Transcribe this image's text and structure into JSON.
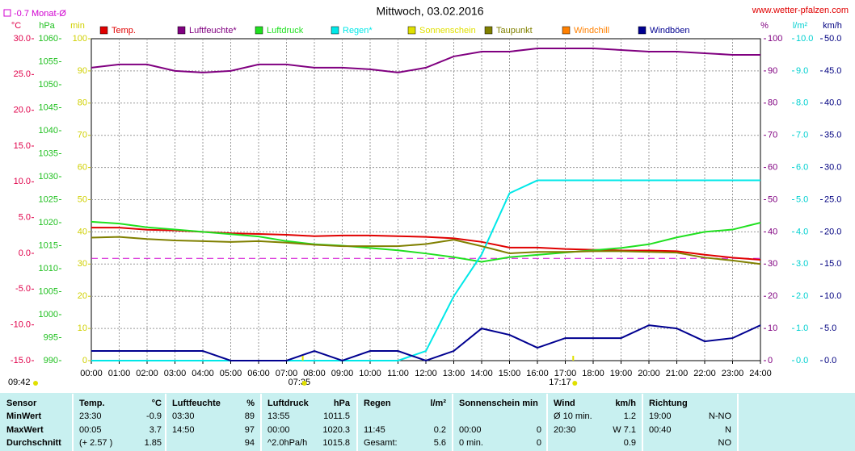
{
  "chart_data": {
    "type": "line",
    "title": "Mittwoch, 03.02.2016",
    "source": "www.wetter-pfalzen.com",
    "updated": "09:42",
    "sunrise": "07:35",
    "sunset": "17:17",
    "monthly_avg": {
      "value": -0.7,
      "label": "-0.7 Monat-Ø",
      "color": "#d000d0",
      "axis": "temp"
    },
    "x": [
      0,
      1,
      2,
      3,
      4,
      5,
      6,
      7,
      8,
      9,
      10,
      11,
      12,
      13,
      14,
      15,
      16,
      17,
      18,
      19,
      20,
      21,
      22,
      23,
      24
    ],
    "xlim": [
      0,
      24
    ],
    "xticks": [
      {
        "value": 0,
        "label": "00:00"
      },
      {
        "value": 1,
        "label": "01:00"
      },
      {
        "value": 2,
        "label": "02:00"
      },
      {
        "value": 3,
        "label": "03:00"
      },
      {
        "value": 4,
        "label": "04:00"
      },
      {
        "value": 5,
        "label": "05:00"
      },
      {
        "value": 6,
        "label": "06:00"
      },
      {
        "value": 7,
        "label": "07:00"
      },
      {
        "value": 8,
        "label": "08:00"
      },
      {
        "value": 9,
        "label": "09:00"
      },
      {
        "value": 10,
        "label": "10:00"
      },
      {
        "value": 11,
        "label": "11:00"
      },
      {
        "value": 12,
        "label": "12:00"
      },
      {
        "value": 13,
        "label": "13:00"
      },
      {
        "value": 14,
        "label": "14:00"
      },
      {
        "value": 15,
        "label": "15:00"
      },
      {
        "value": 16,
        "label": "16:00"
      },
      {
        "value": 17,
        "label": "17:00"
      },
      {
        "value": 18,
        "label": "18:00"
      },
      {
        "value": 19,
        "label": "19:00"
      },
      {
        "value": 20,
        "label": "20:00"
      },
      {
        "value": 21,
        "label": "21:00"
      },
      {
        "value": 22,
        "label": "22:00"
      },
      {
        "value": 23,
        "label": "23:00"
      },
      {
        "value": 24,
        "label": "24:00"
      }
    ],
    "grid": true,
    "axes": {
      "temp": {
        "label": "°C",
        "color": "#e0004a",
        "side": "left",
        "lim": [
          -15,
          30
        ],
        "ticks": [
          {
            "value": -15,
            "label": "-15.0"
          },
          {
            "value": -10,
            "label": "-10.0"
          },
          {
            "value": -5,
            "label": "-5.0"
          },
          {
            "value": 0,
            "label": "0.0"
          },
          {
            "value": 5,
            "label": "5.0"
          },
          {
            "value": 10,
            "label": "10.0"
          },
          {
            "value": 15,
            "label": "15.0"
          },
          {
            "value": 20,
            "label": "20.0"
          },
          {
            "value": 25,
            "label": "25.0"
          },
          {
            "value": 30,
            "label": "30.0"
          }
        ]
      },
      "hpa": {
        "label": "hPa",
        "color": "#20c020",
        "side": "left",
        "lim": [
          990,
          1060
        ],
        "ticks": [
          990,
          995,
          1000,
          1005,
          1010,
          1015,
          1020,
          1025,
          1030,
          1035,
          1040,
          1045,
          1050,
          1055,
          1060
        ]
      },
      "min": {
        "label": "min",
        "color": "#d0d000",
        "side": "left",
        "lim": [
          0,
          100
        ],
        "ticks": [
          0,
          10,
          20,
          30,
          40,
          50,
          60,
          70,
          80,
          90,
          100
        ]
      },
      "pct": {
        "label": "%",
        "color": "#800080",
        "side": "right",
        "lim": [
          0,
          100
        ],
        "ticks": [
          0,
          10,
          20,
          30,
          40,
          50,
          60,
          70,
          80,
          90,
          100
        ]
      },
      "rain": {
        "label": "l/m²",
        "color": "#00d0d0",
        "side": "right",
        "lim": [
          0,
          10
        ],
        "ticks": [
          {
            "value": 0,
            "label": "0.0"
          },
          {
            "value": 1,
            "label": "1.0"
          },
          {
            "value": 2,
            "label": "2.0"
          },
          {
            "value": 3,
            "label": "3.0"
          },
          {
            "value": 4,
            "label": "4.0"
          },
          {
            "value": 5,
            "label": "5.0"
          },
          {
            "value": 6,
            "label": "6.0"
          },
          {
            "value": 7,
            "label": "7.0"
          },
          {
            "value": 8,
            "label": "8.0"
          },
          {
            "value": 9,
            "label": "9.0"
          },
          {
            "value": 10,
            "label": "10.0"
          }
        ]
      },
      "kmh": {
        "label": "km/h",
        "color": "#000080",
        "side": "right",
        "lim": [
          0,
          50
        ],
        "ticks": [
          {
            "value": 0,
            "label": "0.0"
          },
          {
            "value": 5,
            "label": "5.0"
          },
          {
            "value": 10,
            "label": "10.0"
          },
          {
            "value": 15,
            "label": "15.0"
          },
          {
            "value": 20,
            "label": "20.0"
          },
          {
            "value": 25,
            "label": "25.0"
          },
          {
            "value": 30,
            "label": "30.0"
          },
          {
            "value": 35,
            "label": "35.0"
          },
          {
            "value": 40,
            "label": "40.0"
          },
          {
            "value": 45,
            "label": "45.0"
          },
          {
            "value": 50,
            "label": "50.0"
          }
        ]
      }
    },
    "series": [
      {
        "name": "Temp.",
        "color": "#e00000",
        "axis": "temp",
        "values": [
          3.6,
          3.6,
          3.3,
          3.2,
          3.0,
          2.8,
          2.7,
          2.6,
          2.4,
          2.5,
          2.5,
          2.4,
          2.3,
          2.1,
          1.6,
          0.8,
          0.8,
          0.6,
          0.5,
          0.4,
          0.4,
          0.3,
          -0.2,
          -0.6,
          -0.9
        ]
      },
      {
        "name": "Luftfeuchte*",
        "color": "#800080",
        "axis": "pct",
        "values": [
          91,
          92,
          92,
          90,
          89.5,
          90,
          92,
          92,
          91,
          91,
          90.5,
          89.5,
          91,
          94.5,
          96,
          96,
          97,
          97,
          97,
          96.5,
          96,
          96,
          95.5,
          95,
          95
        ]
      },
      {
        "name": "Luftdruck",
        "color": "#20e020",
        "axis": "hpa",
        "values": [
          1020.2,
          1019.8,
          1019,
          1018.5,
          1018,
          1017.5,
          1017,
          1016,
          1015.3,
          1015,
          1014.5,
          1014,
          1013.3,
          1012.5,
          1011.5,
          1012.5,
          1013,
          1013.5,
          1014,
          1014.5,
          1015.3,
          1016.8,
          1018,
          1018.5,
          1020
        ]
      },
      {
        "name": "Regen*",
        "color": "#00e8e8",
        "axis": "rain",
        "values": [
          0,
          0,
          0,
          0,
          0,
          0,
          0,
          0,
          0,
          0,
          0,
          0,
          0.3,
          2.0,
          3.3,
          5.2,
          5.6,
          5.6,
          5.6,
          5.6,
          5.6,
          5.6,
          5.6,
          5.6,
          5.6
        ]
      },
      {
        "name": "Sonnenschein",
        "color": "#e0e000",
        "axis": "min",
        "values": [
          null,
          null,
          null,
          null,
          null,
          null,
          null,
          null,
          null,
          null,
          null,
          null,
          null,
          null,
          null,
          null,
          null,
          null,
          null,
          null,
          null,
          null,
          null,
          null,
          null
        ]
      },
      {
        "name": "Taupunkt",
        "color": "#808000",
        "axis": "temp",
        "values": [
          2.2,
          2.3,
          2.0,
          1.8,
          1.7,
          1.6,
          1.7,
          1.5,
          1.2,
          1.0,
          1.0,
          1.0,
          1.3,
          1.9,
          1.0,
          0.0,
          0.2,
          0.2,
          0.3,
          0.3,
          0.2,
          0.1,
          -0.6,
          -1.0,
          -1.5
        ]
      },
      {
        "name": "Windchill",
        "color": "#ff8000",
        "axis": "temp",
        "values": [
          null,
          null,
          null,
          null,
          null,
          null,
          null,
          null,
          null,
          null,
          null,
          null,
          null,
          null,
          null,
          null,
          null,
          null,
          null,
          null,
          null,
          null,
          null,
          null,
          null
        ]
      },
      {
        "name": "Windböen",
        "color": "#000090",
        "axis": "kmh",
        "values": [
          1.5,
          1.5,
          1.5,
          1.5,
          1.5,
          0,
          0,
          0,
          1.5,
          0,
          1.5,
          1.5,
          0,
          1.5,
          5,
          4,
          2,
          3.5,
          3.5,
          3.5,
          5.5,
          5,
          3,
          3.5,
          5.5
        ]
      }
    ]
  },
  "table": {
    "rows": [
      [
        "Sensor",
        "Temp.",
        "°C",
        "Luftfeuchte",
        "%",
        "Luftdruck",
        "hPa",
        "Regen",
        "l/m²",
        "Sonnenschein min",
        null,
        "Wind",
        "km/h",
        "Richtung",
        null
      ],
      [
        "MinWert",
        "23:30",
        -0.9,
        "03:30",
        89,
        "13:55",
        1011.5,
        null,
        null,
        null,
        null,
        "Ø 10 min.",
        1.2,
        "19:00",
        "N-NO"
      ],
      [
        "MaxWert",
        "00:05",
        3.7,
        "14:50",
        97,
        "00:00",
        1020.3,
        "11:45",
        0.2,
        "00:00",
        0,
        "20:30",
        "W 7.1",
        "00:40",
        "N"
      ],
      [
        "Durchschnitt",
        "(+ 2.57 )",
        1.85,
        null,
        94,
        "^2.0hPa/h",
        1015.8,
        "Gesamt:",
        5.6,
        "0 min.",
        0,
        null,
        0.9,
        null,
        "NO"
      ]
    ]
  }
}
